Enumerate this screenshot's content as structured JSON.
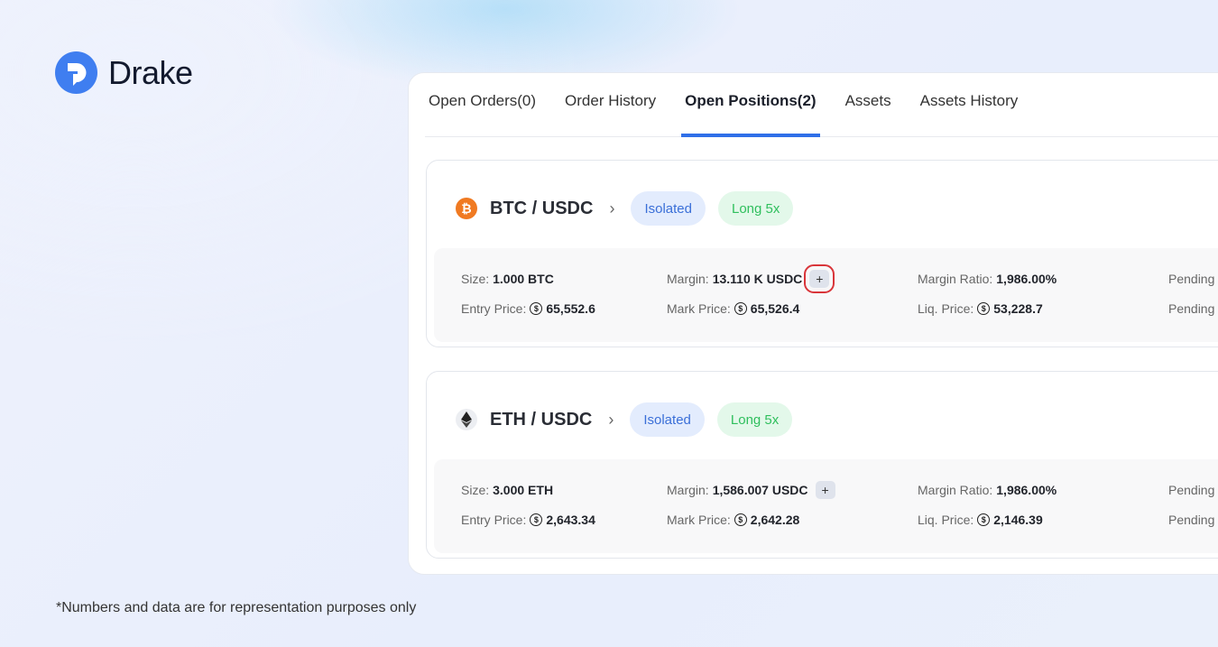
{
  "brand": {
    "name": "Drake",
    "accent": "#3f7ef0"
  },
  "tabs": [
    {
      "label": "Open Orders(0)"
    },
    {
      "label": "Order History"
    },
    {
      "label": "Open Positions(2)",
      "active": true
    },
    {
      "label": "Assets"
    },
    {
      "label": "Assets History"
    }
  ],
  "positions": [
    {
      "pair": "BTC / USDC",
      "icon": "bitcoin-icon",
      "margin_type": "Isolated",
      "side": "Long 5x",
      "size_label": "Size:",
      "size": "1.000 BTC",
      "margin_label": "Margin:",
      "margin": "13.110 K USDC",
      "ratio_label": "Margin Ratio:",
      "ratio": "1,986.00%",
      "entry_label": "Entry Price:",
      "entry": "65,552.6",
      "mark_label": "Mark Price:",
      "mark": "65,526.4",
      "liq_label": "Liq. Price:",
      "liq": "53,228.7",
      "pending_label": "Pending"
    },
    {
      "pair": "ETH / USDC",
      "icon": "ethereum-icon",
      "margin_type": "Isolated",
      "side": "Long 5x",
      "size_label": "Size:",
      "size": "3.000 ETH",
      "margin_label": "Margin:",
      "margin": "1,586.007 USDC",
      "ratio_label": "Margin Ratio:",
      "ratio": "1,986.00%",
      "entry_label": "Entry Price:",
      "entry": "2,643.34",
      "mark_label": "Mark Price:",
      "mark": "2,642.28",
      "liq_label": "Liq. Price:",
      "liq": "2,146.39",
      "pending_label": "Pending"
    }
  ],
  "footnote": "*Numbers and data are for representation purposes only"
}
